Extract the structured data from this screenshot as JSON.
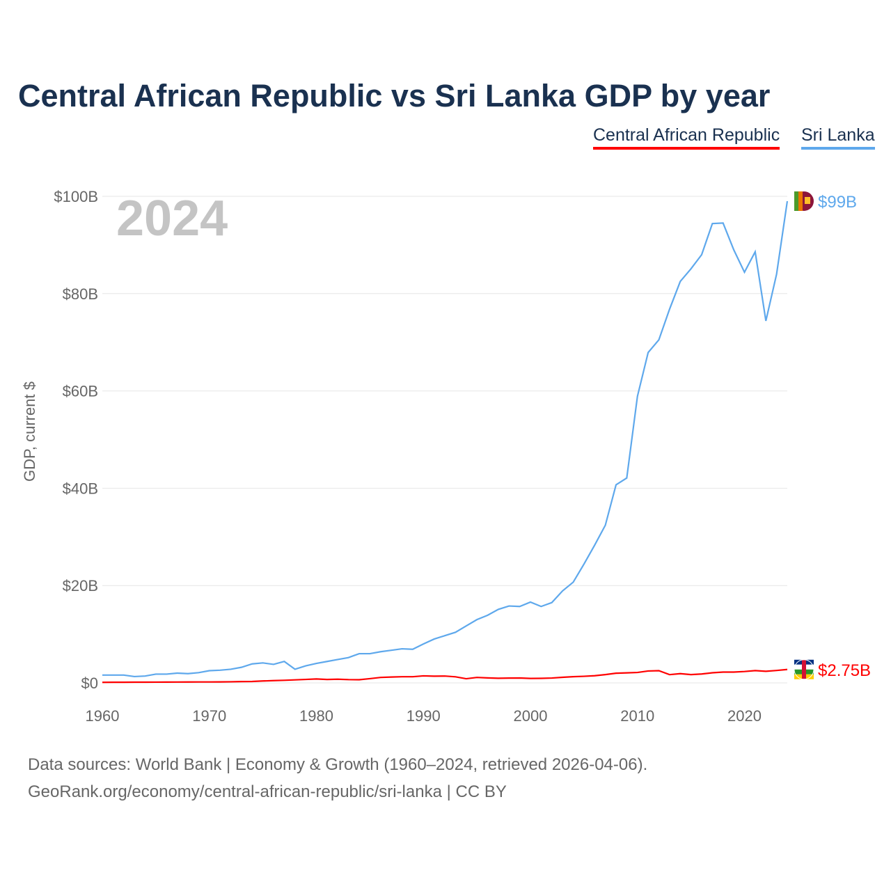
{
  "title": "Central African Republic vs Sri Lanka GDP by year",
  "year_label": "2024",
  "footer": {
    "line1": "Data sources: World Bank | Economy & Growth (1960–2024, retrieved 2026-04-06).",
    "line2": "GeoRank.org/economy/central-african-republic/sri-lanka | CC BY"
  },
  "chart_data": {
    "type": "line",
    "title": "Central African Republic vs Sri Lanka GDP by year",
    "xlabel": "",
    "ylabel": "GDP, current $",
    "xlim": [
      1960,
      2024
    ],
    "ylim": [
      0,
      100
    ],
    "x_ticks": [
      "1960",
      "1970",
      "1980",
      "1990",
      "2000",
      "2010",
      "2020"
    ],
    "y_ticks": [
      "$0",
      "$20B",
      "$40B",
      "$60B",
      "$80B",
      "$100B"
    ],
    "grid": true,
    "legend_placement": "top-right",
    "series": [
      {
        "name": "Central African Republic",
        "color": "#ff0000",
        "end_label": "$2.75B",
        "flag": "central-african-republic-flag",
        "values": [
          0.11,
          0.12,
          0.13,
          0.14,
          0.14,
          0.15,
          0.16,
          0.17,
          0.18,
          0.19,
          0.19,
          0.2,
          0.22,
          0.27,
          0.29,
          0.39,
          0.46,
          0.53,
          0.62,
          0.71,
          0.8,
          0.7,
          0.75,
          0.67,
          0.64,
          0.87,
          1.12,
          1.2,
          1.26,
          1.26,
          1.44,
          1.38,
          1.4,
          1.24,
          0.85,
          1.12,
          1.02,
          0.95,
          0.98,
          1.0,
          0.91,
          0.93,
          0.99,
          1.14,
          1.27,
          1.35,
          1.47,
          1.7,
          1.98,
          2.06,
          2.14,
          2.44,
          2.5,
          1.69,
          1.89,
          1.7,
          1.82,
          2.07,
          2.22,
          2.22,
          2.33,
          2.52,
          2.38,
          2.55,
          2.75
        ]
      },
      {
        "name": "Sri Lanka",
        "color": "#5ea8ec",
        "end_label": "$99B",
        "flag": "sri-lanka-flag",
        "values": [
          1.6,
          1.6,
          1.6,
          1.3,
          1.4,
          1.8,
          1.8,
          2.0,
          1.9,
          2.1,
          2.5,
          2.6,
          2.8,
          3.2,
          3.9,
          4.1,
          3.8,
          4.4,
          2.8,
          3.5,
          4.0,
          4.4,
          4.8,
          5.2,
          6.0,
          6.0,
          6.4,
          6.7,
          7.0,
          6.9,
          8.0,
          9.0,
          9.7,
          10.4,
          11.7,
          13.0,
          13.9,
          15.1,
          15.8,
          15.7,
          16.6,
          15.7,
          16.5,
          18.9,
          20.7,
          24.4,
          28.3,
          32.4,
          40.7,
          42.1,
          58.9,
          67.9,
          70.5,
          76.8,
          82.5,
          85.1,
          88.0,
          94.4,
          94.5,
          89.0,
          84.4,
          88.6,
          74.4,
          84.0,
          99.0
        ]
      }
    ]
  }
}
